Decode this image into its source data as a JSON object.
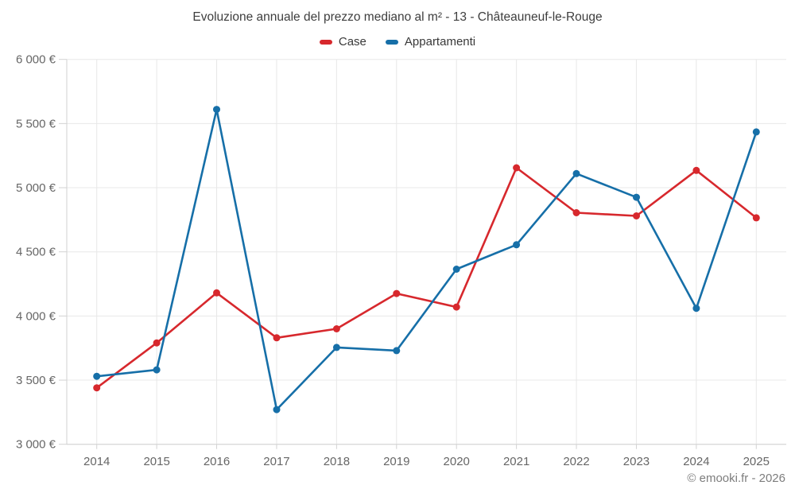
{
  "title": "Evoluzione annuale del prezzo mediano al m² - 13 - Châteauneuf-le-Rouge",
  "footer": "© emooki.fr - 2026",
  "colors": {
    "case_red": "#d7282d",
    "appartamenti_blue": "#166fa8",
    "grid": "#e8e8e8",
    "axis_line": "#d2d2d2",
    "axis_label": "#666666",
    "title_text": "#3e3e3e",
    "footer_text": "#7d7d7d",
    "background": "#ffffff"
  },
  "chart_data": {
    "type": "line",
    "title": "Evoluzione annuale del prezzo mediano al m² - 13 - Châteauneuf-le-Rouge",
    "xlabel": "",
    "ylabel": "",
    "categories": [
      "2014",
      "2015",
      "2016",
      "2017",
      "2018",
      "2019",
      "2020",
      "2021",
      "2022",
      "2023",
      "2024",
      "2025"
    ],
    "series": [
      {
        "name": "Case",
        "color": "#d7282d",
        "values": [
          3440,
          3790,
          4180,
          3830,
          3900,
          4175,
          4070,
          5155,
          4805,
          4780,
          5135,
          4765
        ]
      },
      {
        "name": "Appartamenti",
        "color": "#166fa8",
        "values": [
          3530,
          3580,
          5610,
          3270,
          3755,
          3730,
          4365,
          4555,
          5110,
          4925,
          4060,
          5435
        ]
      }
    ],
    "ylim": [
      3000,
      6000
    ],
    "ytick_step": 500,
    "ytick_suffix": " €",
    "grid": true,
    "legend_position": "top",
    "marker": "circle"
  }
}
